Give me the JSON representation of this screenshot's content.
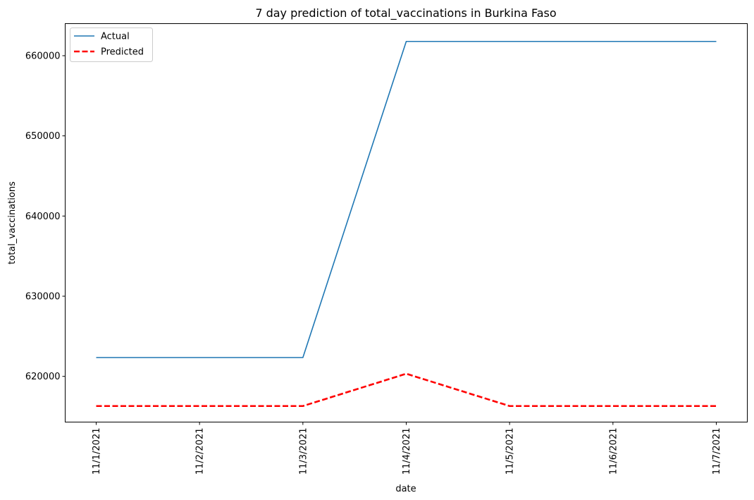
{
  "chart_data": {
    "type": "line",
    "title": "7 day prediction of total_vaccinations in Burkina Faso",
    "xlabel": "date",
    "ylabel": "total_vaccinations",
    "categories": [
      "11/1/2021",
      "11/2/2021",
      "11/3/2021",
      "11/4/2021",
      "11/5/2021",
      "11/6/2021",
      "11/7/2021"
    ],
    "yticks": [
      620000,
      630000,
      640000,
      650000,
      660000
    ],
    "ytick_labels": [
      "620000",
      "630000",
      "640000",
      "650000",
      "660000"
    ],
    "ylim": [
      614300,
      664000
    ],
    "grid": false,
    "legend_position": "top-left",
    "series": [
      {
        "name": "Actual",
        "color": "#1f77b4",
        "style": "solid",
        "values": [
          622350,
          622350,
          622350,
          661780,
          661780,
          661780,
          661780
        ]
      },
      {
        "name": "Predicted",
        "color": "#ff0000",
        "style": "dashed",
        "values": [
          616300,
          616300,
          616300,
          620330,
          616300,
          616300,
          616300
        ]
      }
    ]
  }
}
